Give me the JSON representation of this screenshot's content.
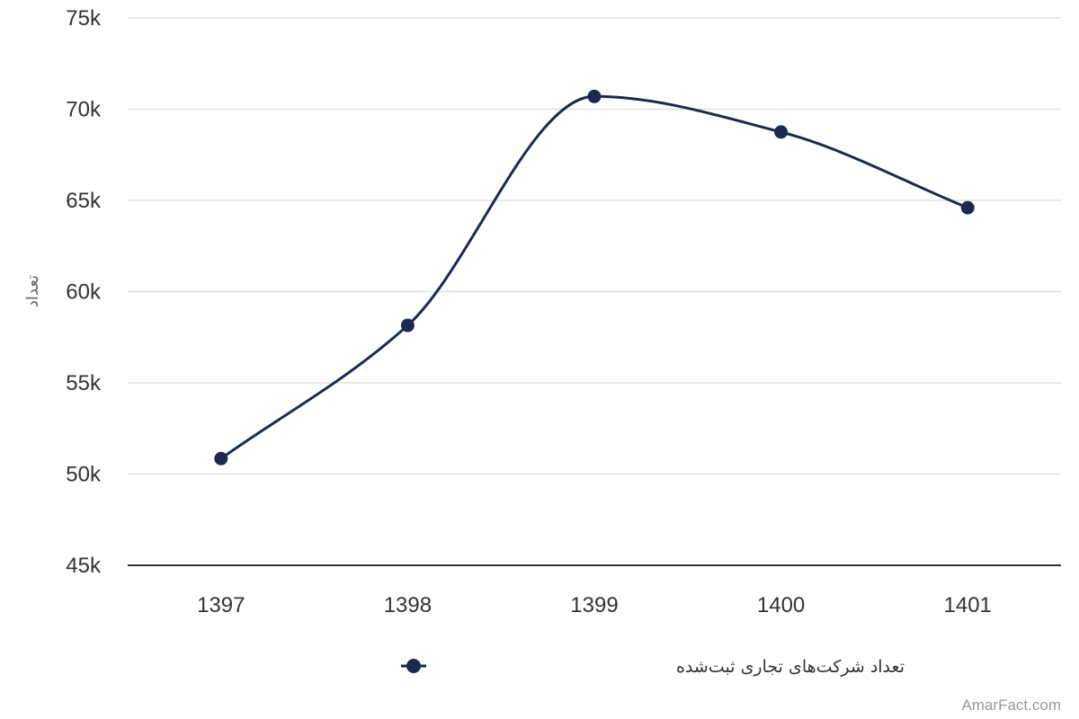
{
  "chart_data": {
    "type": "line",
    "categories": [
      "1397",
      "1398",
      "1399",
      "1400",
      "1401"
    ],
    "series": [
      {
        "name": "تعداد شرکت‌های تجاری ثبت‌شده",
        "values": [
          50850,
          58150,
          70700,
          68750,
          64600
        ],
        "color": "#1a2a4f"
      }
    ],
    "ylabel": "تعداد",
    "ylim": [
      45000,
      75000
    ],
    "yticks": [
      45000,
      50000,
      55000,
      60000,
      65000,
      70000,
      75000
    ],
    "ytick_labels": [
      "45k",
      "50k",
      "55k",
      "60k",
      "65k",
      "70k",
      "75k"
    ],
    "grid": true,
    "smooth": true,
    "legend_position": "bottom-center"
  },
  "credit": "AmarFact.com"
}
